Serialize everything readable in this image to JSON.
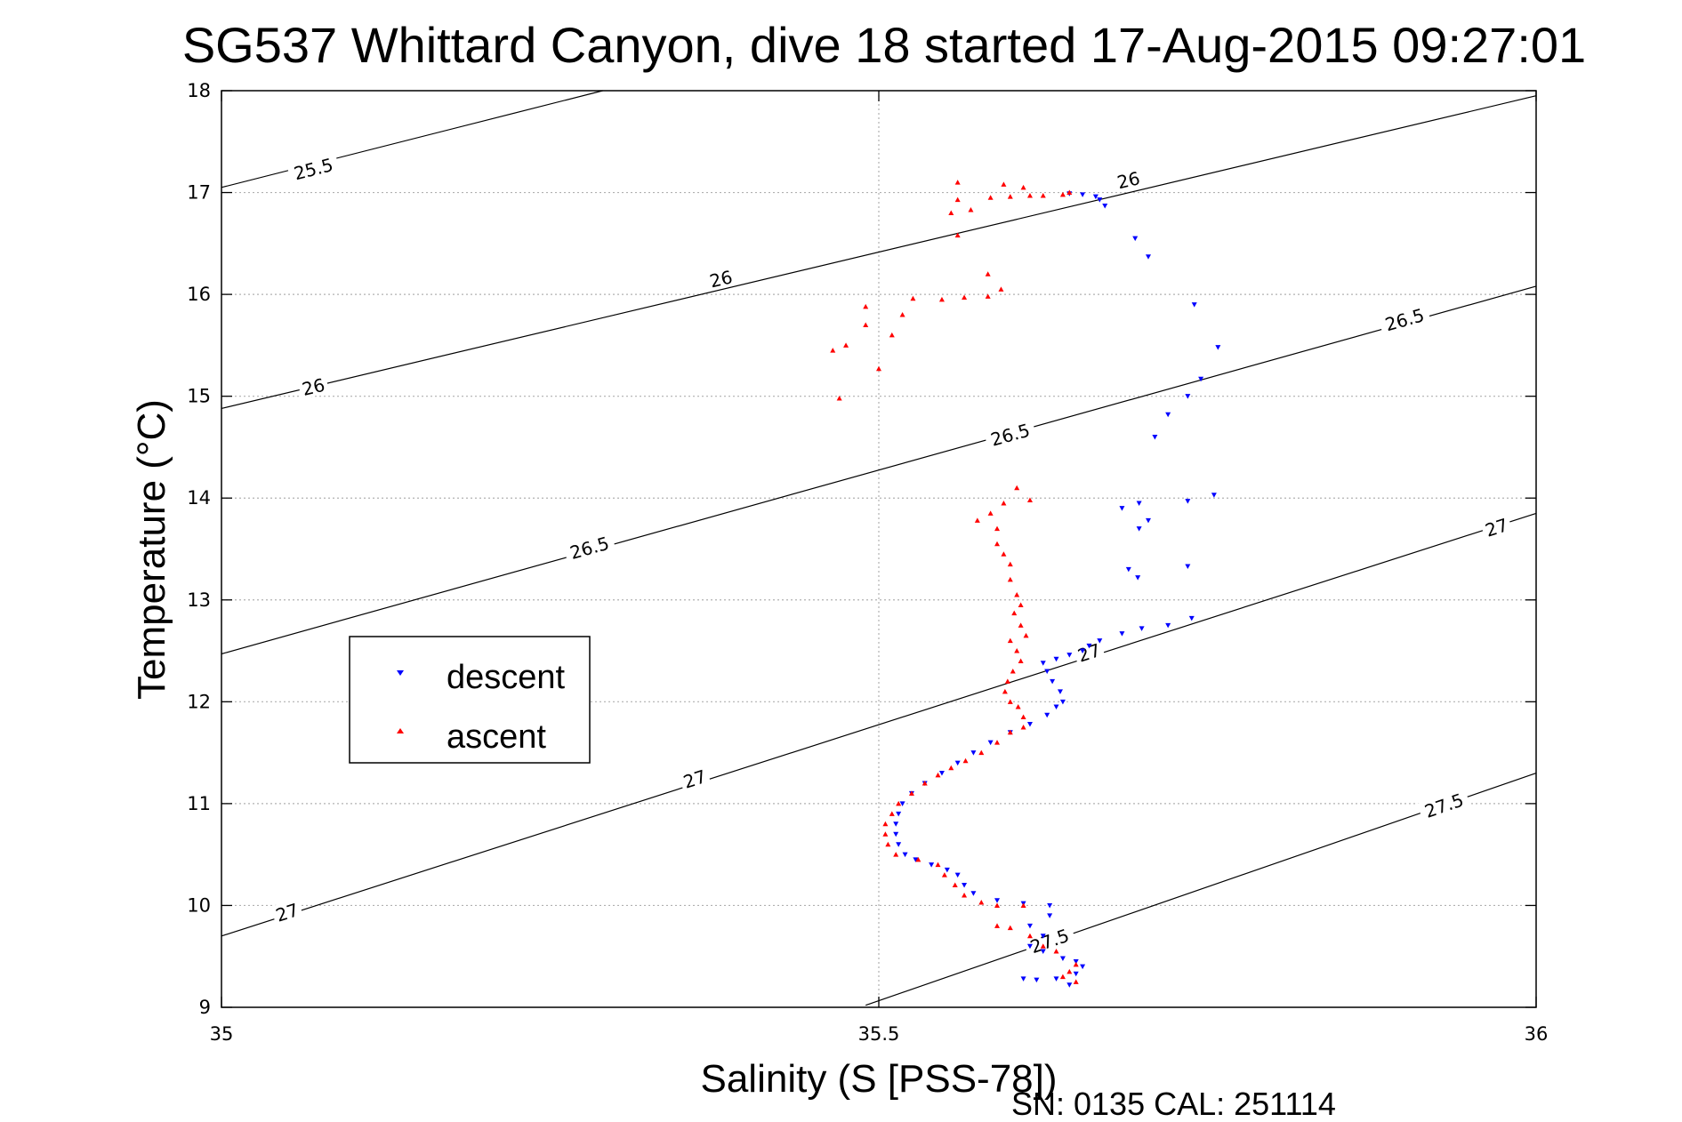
{
  "title": "SG537 Whittard Canyon, dive 18 started 17-Aug-2015 09:27:01",
  "footer": "SN: 0135  CAL: 251114",
  "chart_data": {
    "type": "scatter",
    "title": "SG537 Whittard Canyon, dive 18 started 17-Aug-2015 09:27:01",
    "xlabel": "Salinity (S [PSS-78])",
    "ylabel": "Temperature (°C)",
    "xlim": [
      35,
      36
    ],
    "ylim": [
      9,
      18
    ],
    "xticks": [
      35,
      35.5,
      36
    ],
    "xtick_labels": [
      "35",
      "35.5",
      "36"
    ],
    "yticks": [
      9,
      10,
      11,
      12,
      13,
      14,
      15,
      16,
      17,
      18
    ],
    "ytick_labels": [
      "9",
      "10",
      "11",
      "12",
      "13",
      "14",
      "15",
      "16",
      "17",
      "18"
    ],
    "grid": true,
    "legend_position": "left",
    "colors": {
      "descent": "#0000ff",
      "ascent": "#ff0000",
      "contour": "#000000",
      "grid": "#b0b0b0"
    },
    "contours": [
      {
        "sigma": 25.5,
        "points": [
          [
            35.0,
            17.05
          ],
          [
            35.29,
            18.0
          ]
        ],
        "labels": [
          {
            "text": "25.5",
            "x": 35.07,
            "y": 17.23
          }
        ]
      },
      {
        "sigma": 26.0,
        "points": [
          [
            35.0,
            14.88
          ],
          [
            36.0,
            17.95
          ]
        ],
        "labels": [
          {
            "text": "26",
            "x": 35.07,
            "y": 15.09
          },
          {
            "text": "26",
            "x": 35.38,
            "y": 16.15
          },
          {
            "text": "26",
            "x": 35.69,
            "y": 17.12
          }
        ]
      },
      {
        "sigma": 26.5,
        "points": [
          [
            35.0,
            12.47
          ],
          [
            36.0,
            16.08
          ]
        ],
        "labels": [
          {
            "text": "26.5",
            "x": 35.28,
            "y": 13.51
          },
          {
            "text": "26.5",
            "x": 35.6,
            "y": 14.62
          },
          {
            "text": "26.5",
            "x": 35.9,
            "y": 15.75
          }
        ]
      },
      {
        "sigma": 27.0,
        "points": [
          [
            35.0,
            9.7
          ],
          [
            36.0,
            13.85
          ]
        ],
        "labels": [
          {
            "text": "27",
            "x": 35.05,
            "y": 9.93
          },
          {
            "text": "27",
            "x": 35.36,
            "y": 11.24
          },
          {
            "text": "27",
            "x": 35.66,
            "y": 12.48
          },
          {
            "text": "27",
            "x": 35.97,
            "y": 13.71
          }
        ]
      },
      {
        "sigma": 27.5,
        "points": [
          [
            35.49,
            9.02
          ],
          [
            36.0,
            11.3
          ]
        ],
        "labels": [
          {
            "text": "27.5",
            "x": 35.63,
            "y": 9.65
          },
          {
            "text": "27.5",
            "x": 35.93,
            "y": 10.98
          }
        ]
      }
    ],
    "series": [
      {
        "name": "descent",
        "marker": "triangle-down",
        "points": [
          [
            35.645,
            16.99
          ],
          [
            35.655,
            16.98
          ],
          [
            35.668,
            16.93
          ],
          [
            35.672,
            16.87
          ],
          [
            35.665,
            16.96
          ],
          [
            35.695,
            16.55
          ],
          [
            35.705,
            16.37
          ],
          [
            35.74,
            15.9
          ],
          [
            35.758,
            15.48
          ],
          [
            35.745,
            15.17
          ],
          [
            35.735,
            15.0
          ],
          [
            35.72,
            14.82
          ],
          [
            35.71,
            14.6
          ],
          [
            35.755,
            14.03
          ],
          [
            35.735,
            13.97
          ],
          [
            35.698,
            13.95
          ],
          [
            35.685,
            13.9
          ],
          [
            35.698,
            13.7
          ],
          [
            35.705,
            13.78
          ],
          [
            35.735,
            13.33
          ],
          [
            35.69,
            13.3
          ],
          [
            35.697,
            13.22
          ],
          [
            35.738,
            12.82
          ],
          [
            35.72,
            12.75
          ],
          [
            35.7,
            12.72
          ],
          [
            35.685,
            12.67
          ],
          [
            35.668,
            12.6
          ],
          [
            35.66,
            12.55
          ],
          [
            35.655,
            12.5
          ],
          [
            35.645,
            12.46
          ],
          [
            35.635,
            12.42
          ],
          [
            35.625,
            12.38
          ],
          [
            35.628,
            12.3
          ],
          [
            35.632,
            12.2
          ],
          [
            35.638,
            12.1
          ],
          [
            35.64,
            12.0
          ],
          [
            35.635,
            11.95
          ],
          [
            35.628,
            11.87
          ],
          [
            35.615,
            11.78
          ],
          [
            35.6,
            11.7
          ],
          [
            35.585,
            11.6
          ],
          [
            35.572,
            11.5
          ],
          [
            35.56,
            11.4
          ],
          [
            35.548,
            11.3
          ],
          [
            35.535,
            11.2
          ],
          [
            35.525,
            11.1
          ],
          [
            35.518,
            11.0
          ],
          [
            35.515,
            10.9
          ],
          [
            35.513,
            10.8
          ],
          [
            35.513,
            10.7
          ],
          [
            35.515,
            10.6
          ],
          [
            35.52,
            10.5
          ],
          [
            35.528,
            10.45
          ],
          [
            35.54,
            10.4
          ],
          [
            35.552,
            10.35
          ],
          [
            35.56,
            10.3
          ],
          [
            35.565,
            10.2
          ],
          [
            35.572,
            10.12
          ],
          [
            35.59,
            10.05
          ],
          [
            35.61,
            10.02
          ],
          [
            35.63,
            10.0
          ],
          [
            35.63,
            9.9
          ],
          [
            35.615,
            9.8
          ],
          [
            35.625,
            9.7
          ],
          [
            35.615,
            9.6
          ],
          [
            35.625,
            9.55
          ],
          [
            35.64,
            9.48
          ],
          [
            35.65,
            9.45
          ],
          [
            35.655,
            9.4
          ],
          [
            35.65,
            9.33
          ],
          [
            35.635,
            9.28
          ],
          [
            35.62,
            9.27
          ],
          [
            35.61,
            9.28
          ],
          [
            35.645,
            9.22
          ]
        ]
      },
      {
        "name": "ascent",
        "marker": "triangle-up",
        "points": [
          [
            35.56,
            17.1
          ],
          [
            35.595,
            17.08
          ],
          [
            35.61,
            17.05
          ],
          [
            35.615,
            16.97
          ],
          [
            35.625,
            16.97
          ],
          [
            35.64,
            16.98
          ],
          [
            35.645,
            17.0
          ],
          [
            35.6,
            16.96
          ],
          [
            35.585,
            16.95
          ],
          [
            35.56,
            16.93
          ],
          [
            35.57,
            16.83
          ],
          [
            35.555,
            16.8
          ],
          [
            35.56,
            16.58
          ],
          [
            35.583,
            16.2
          ],
          [
            35.593,
            16.05
          ],
          [
            35.583,
            15.98
          ],
          [
            35.565,
            15.97
          ],
          [
            35.548,
            15.95
          ],
          [
            35.526,
            15.96
          ],
          [
            35.518,
            15.8
          ],
          [
            35.49,
            15.88
          ],
          [
            35.49,
            15.7
          ],
          [
            35.51,
            15.6
          ],
          [
            35.475,
            15.5
          ],
          [
            35.465,
            15.45
          ],
          [
            35.5,
            15.27
          ],
          [
            35.47,
            14.98
          ],
          [
            35.605,
            14.1
          ],
          [
            35.615,
            13.98
          ],
          [
            35.595,
            13.95
          ],
          [
            35.585,
            13.85
          ],
          [
            35.575,
            13.78
          ],
          [
            35.59,
            13.7
          ],
          [
            35.59,
            13.55
          ],
          [
            35.595,
            13.45
          ],
          [
            35.6,
            13.35
          ],
          [
            35.6,
            13.2
          ],
          [
            35.605,
            13.05
          ],
          [
            35.608,
            12.95
          ],
          [
            35.603,
            12.87
          ],
          [
            35.608,
            12.75
          ],
          [
            35.612,
            12.65
          ],
          [
            35.6,
            12.6
          ],
          [
            35.605,
            12.5
          ],
          [
            35.608,
            12.4
          ],
          [
            35.602,
            12.3
          ],
          [
            35.598,
            12.2
          ],
          [
            35.596,
            12.1
          ],
          [
            35.6,
            12.0
          ],
          [
            35.606,
            11.95
          ],
          [
            35.61,
            11.85
          ],
          [
            35.61,
            11.75
          ],
          [
            35.6,
            11.7
          ],
          [
            35.59,
            11.6
          ],
          [
            35.578,
            11.5
          ],
          [
            35.566,
            11.42
          ],
          [
            35.555,
            11.35
          ],
          [
            35.545,
            11.28
          ],
          [
            35.535,
            11.2
          ],
          [
            35.525,
            11.1
          ],
          [
            35.515,
            11.0
          ],
          [
            35.51,
            10.9
          ],
          [
            35.505,
            10.8
          ],
          [
            35.505,
            10.7
          ],
          [
            35.507,
            10.6
          ],
          [
            35.513,
            10.5
          ],
          [
            35.53,
            10.45
          ],
          [
            35.545,
            10.4
          ],
          [
            35.55,
            10.3
          ],
          [
            35.558,
            10.2
          ],
          [
            35.565,
            10.1
          ],
          [
            35.578,
            10.03
          ],
          [
            35.59,
            10.0
          ],
          [
            35.61,
            10.0
          ],
          [
            35.59,
            9.8
          ],
          [
            35.6,
            9.78
          ],
          [
            35.615,
            9.7
          ],
          [
            35.625,
            9.6
          ],
          [
            35.635,
            9.55
          ],
          [
            35.65,
            9.42
          ],
          [
            35.645,
            9.35
          ],
          [
            35.64,
            9.3
          ],
          [
            35.65,
            9.25
          ]
        ]
      }
    ]
  }
}
